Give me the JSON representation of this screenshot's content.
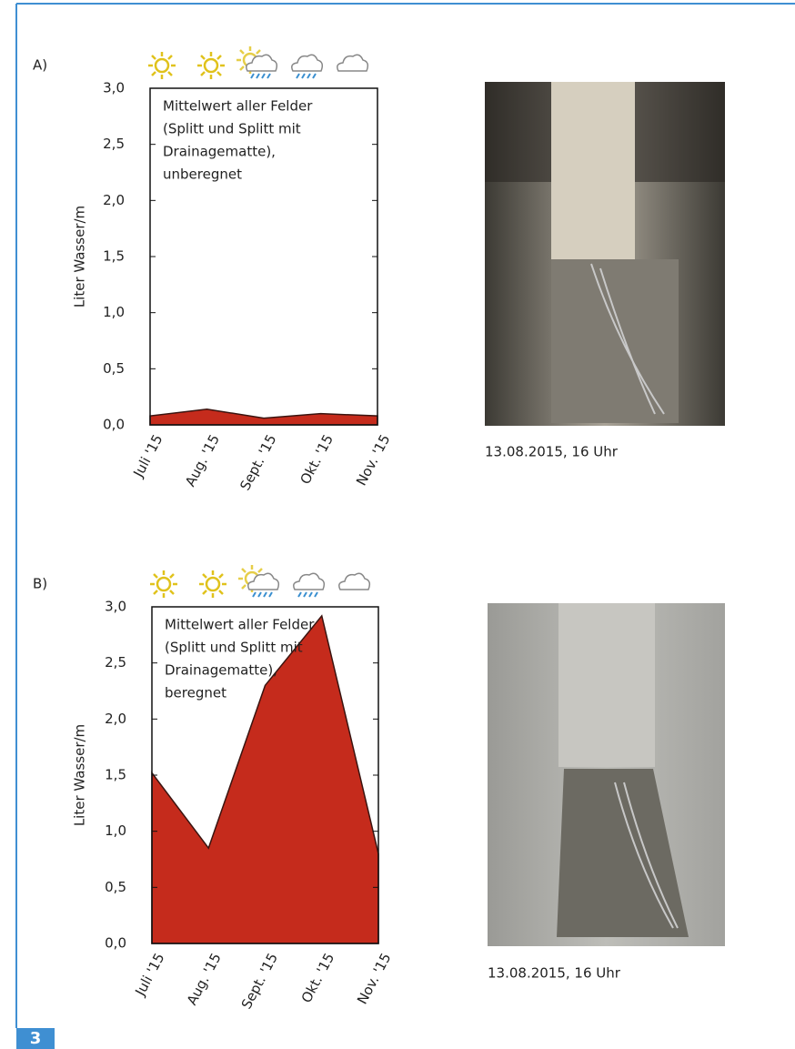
{
  "page_number": "3",
  "chart_data": [
    {
      "type": "area",
      "panel_label": "A)",
      "y_label": "Liter Wasser/m",
      "annotation": [
        "Mittelwert aller Felder",
        "(Splitt und Splitt mit",
        "Drainagematte),",
        "unberegnet"
      ],
      "categories": [
        "Juli '15",
        "Aug. '15",
        "Sept. '15",
        "Okt. '15",
        "Nov. '15"
      ],
      "values": [
        0.08,
        0.14,
        0.06,
        0.1,
        0.08
      ],
      "color": "#c52b1c",
      "ylim": [
        0,
        3
      ],
      "yticks": [
        {
          "value": 0,
          "label": "0,0"
        },
        {
          "value": 0.5,
          "label": "0,5"
        },
        {
          "value": 1,
          "label": "1,0"
        },
        {
          "value": 1.5,
          "label": "1,5"
        },
        {
          "value": 2,
          "label": "2,0"
        },
        {
          "value": 2.5,
          "label": "2,5"
        },
        {
          "value": 3,
          "label": "3,0"
        }
      ],
      "grid": false,
      "caption": "13.08.2015, 16 Uhr"
    },
    {
      "type": "area",
      "panel_label": "B)",
      "y_label": "Liter Wasser/m",
      "annotation": [
        "Mittelwert aller Felder",
        "(Splitt und Splitt mit",
        "Drainagematte),",
        "beregnet"
      ],
      "categories": [
        "Juli '15",
        "Aug. '15",
        "Sept. '15",
        "Okt. '15",
        "Nov. '15"
      ],
      "values": [
        1.52,
        0.85,
        2.3,
        2.92,
        0.8
      ],
      "color": "#c52b1c",
      "ylim": [
        0,
        3
      ],
      "yticks": [
        {
          "value": 0,
          "label": "0,0"
        },
        {
          "value": 0.5,
          "label": "0,5"
        },
        {
          "value": 1,
          "label": "1,0"
        },
        {
          "value": 1.5,
          "label": "1,5"
        },
        {
          "value": 2,
          "label": "2,0"
        },
        {
          "value": 2.5,
          "label": "2,5"
        },
        {
          "value": 3,
          "label": "3,0"
        }
      ],
      "grid": false,
      "caption": "13.08.2015, 16 Uhr"
    }
  ]
}
